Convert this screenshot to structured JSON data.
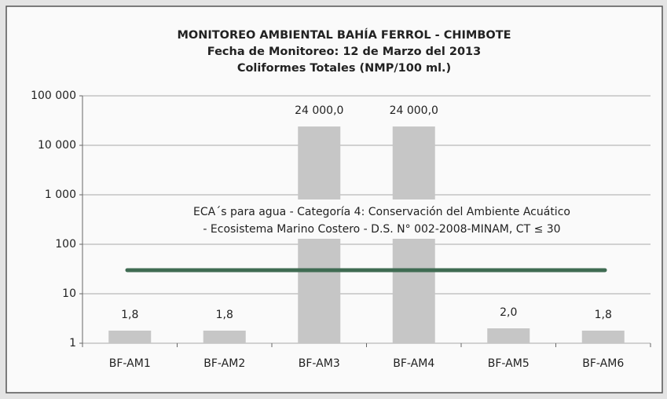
{
  "chart_data": {
    "type": "bar",
    "title": "MONITOREO AMBIENTAL BAHÍA FERROL - CHIMBOTE",
    "subtitle": [
      "Fecha de Monitoreo: 12 de Marzo del 2013",
      "Coliformes Totales (NMP/100 ml.)"
    ],
    "categories": [
      "BF-AM1",
      "BF-AM2",
      "BF-AM3",
      "BF-AM4",
      "BF-AM5",
      "BF-AM6"
    ],
    "values": [
      1.8,
      1.8,
      24000,
      24000,
      2.0,
      1.8
    ],
    "value_labels": [
      "1,8",
      "1,8",
      "24 000,0",
      "24 000,0",
      "2,0",
      "1,8"
    ],
    "color": "#c6c6c6",
    "log": true,
    "ylim": [
      1,
      100000
    ],
    "yticks": [
      1,
      10,
      100,
      {
        "value": 1000,
        "label": "1 000"
      },
      {
        "value": 10000,
        "label": "10 000"
      },
      {
        "value": 100000,
        "label": "100 000"
      }
    ],
    "grid": true,
    "threshold": 30,
    "threshold_color": "#3f6b52",
    "annotation": [
      "ECA´s para agua - Categoría 4: Conservación del Ambiente Acuático",
      "- Ecosistema Marino Costero - D.S. N° 002-2008-MINAM, CT ≤ 30"
    ]
  }
}
